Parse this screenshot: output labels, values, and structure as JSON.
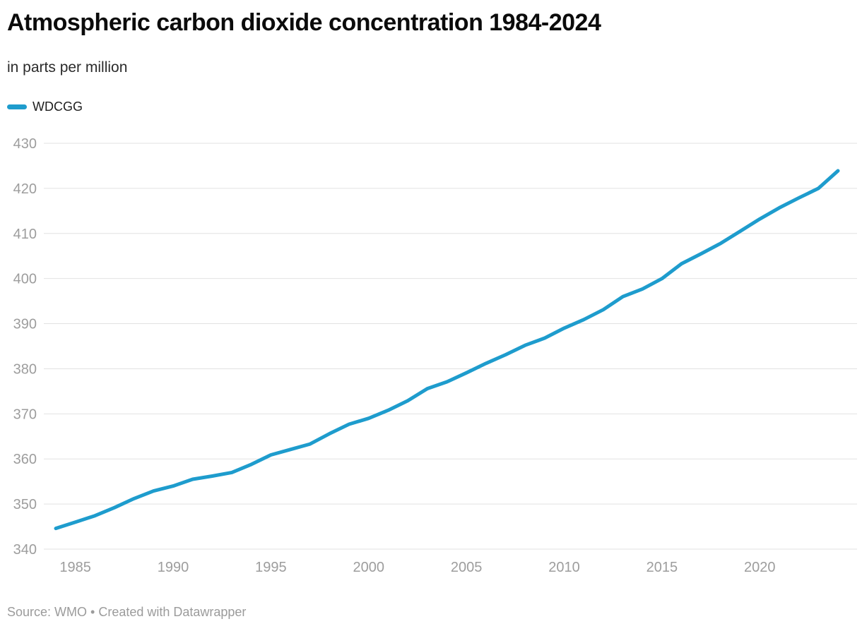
{
  "header": {
    "title": "Atmospheric carbon dioxide concentration 1984-2024",
    "subtitle": "in parts per million"
  },
  "legend": {
    "series_label": "WDCGG"
  },
  "footer": {
    "source": "Source: WMO • Created with Datawrapper"
  },
  "colors": {
    "line": "#1E9CCD",
    "grid": "#e2e2e2",
    "axis_text": "#9d9d9d",
    "title_text": "#0b0b0b",
    "subtitle_text": "#2b2b2b",
    "legend_text": "#1d1d1d",
    "source_text": "#9b9b9b"
  },
  "chart_data": {
    "type": "line",
    "title": "Atmospheric carbon dioxide concentration 1984-2024",
    "subtitle": "in parts per million",
    "xlabel": "",
    "ylabel": "parts per million",
    "xlim": [
      1984,
      2024
    ],
    "ylim": [
      340,
      430
    ],
    "grid": "horizontal",
    "legend_position": "top-left",
    "y_ticks": [
      430,
      420,
      410,
      400,
      390,
      380,
      370,
      360,
      350,
      340
    ],
    "x_ticks": [
      1985,
      1990,
      1995,
      2000,
      2005,
      2010,
      2015,
      2020
    ],
    "series": [
      {
        "name": "WDCGG",
        "x": [
          1984,
          1985,
          1986,
          1987,
          1988,
          1989,
          1990,
          1991,
          1992,
          1993,
          1994,
          1995,
          1996,
          1997,
          1998,
          1999,
          2000,
          2001,
          2002,
          2003,
          2004,
          2005,
          2006,
          2007,
          2008,
          2009,
          2010,
          2011,
          2012,
          2013,
          2014,
          2015,
          2016,
          2017,
          2018,
          2019,
          2020,
          2021,
          2022,
          2023,
          2024
        ],
        "values": [
          344.6,
          346.0,
          347.4,
          349.2,
          351.2,
          352.9,
          354.0,
          355.5,
          356.2,
          357.0,
          358.8,
          360.9,
          362.1,
          363.3,
          365.6,
          367.7,
          369.0,
          370.8,
          372.9,
          375.6,
          377.1,
          379.1,
          381.2,
          383.1,
          385.2,
          386.8,
          389.0,
          390.9,
          393.1,
          396.0,
          397.7,
          400.0,
          403.3,
          405.5,
          407.8,
          410.5,
          413.2,
          415.7,
          417.9,
          420.0,
          423.9
        ]
      }
    ]
  }
}
